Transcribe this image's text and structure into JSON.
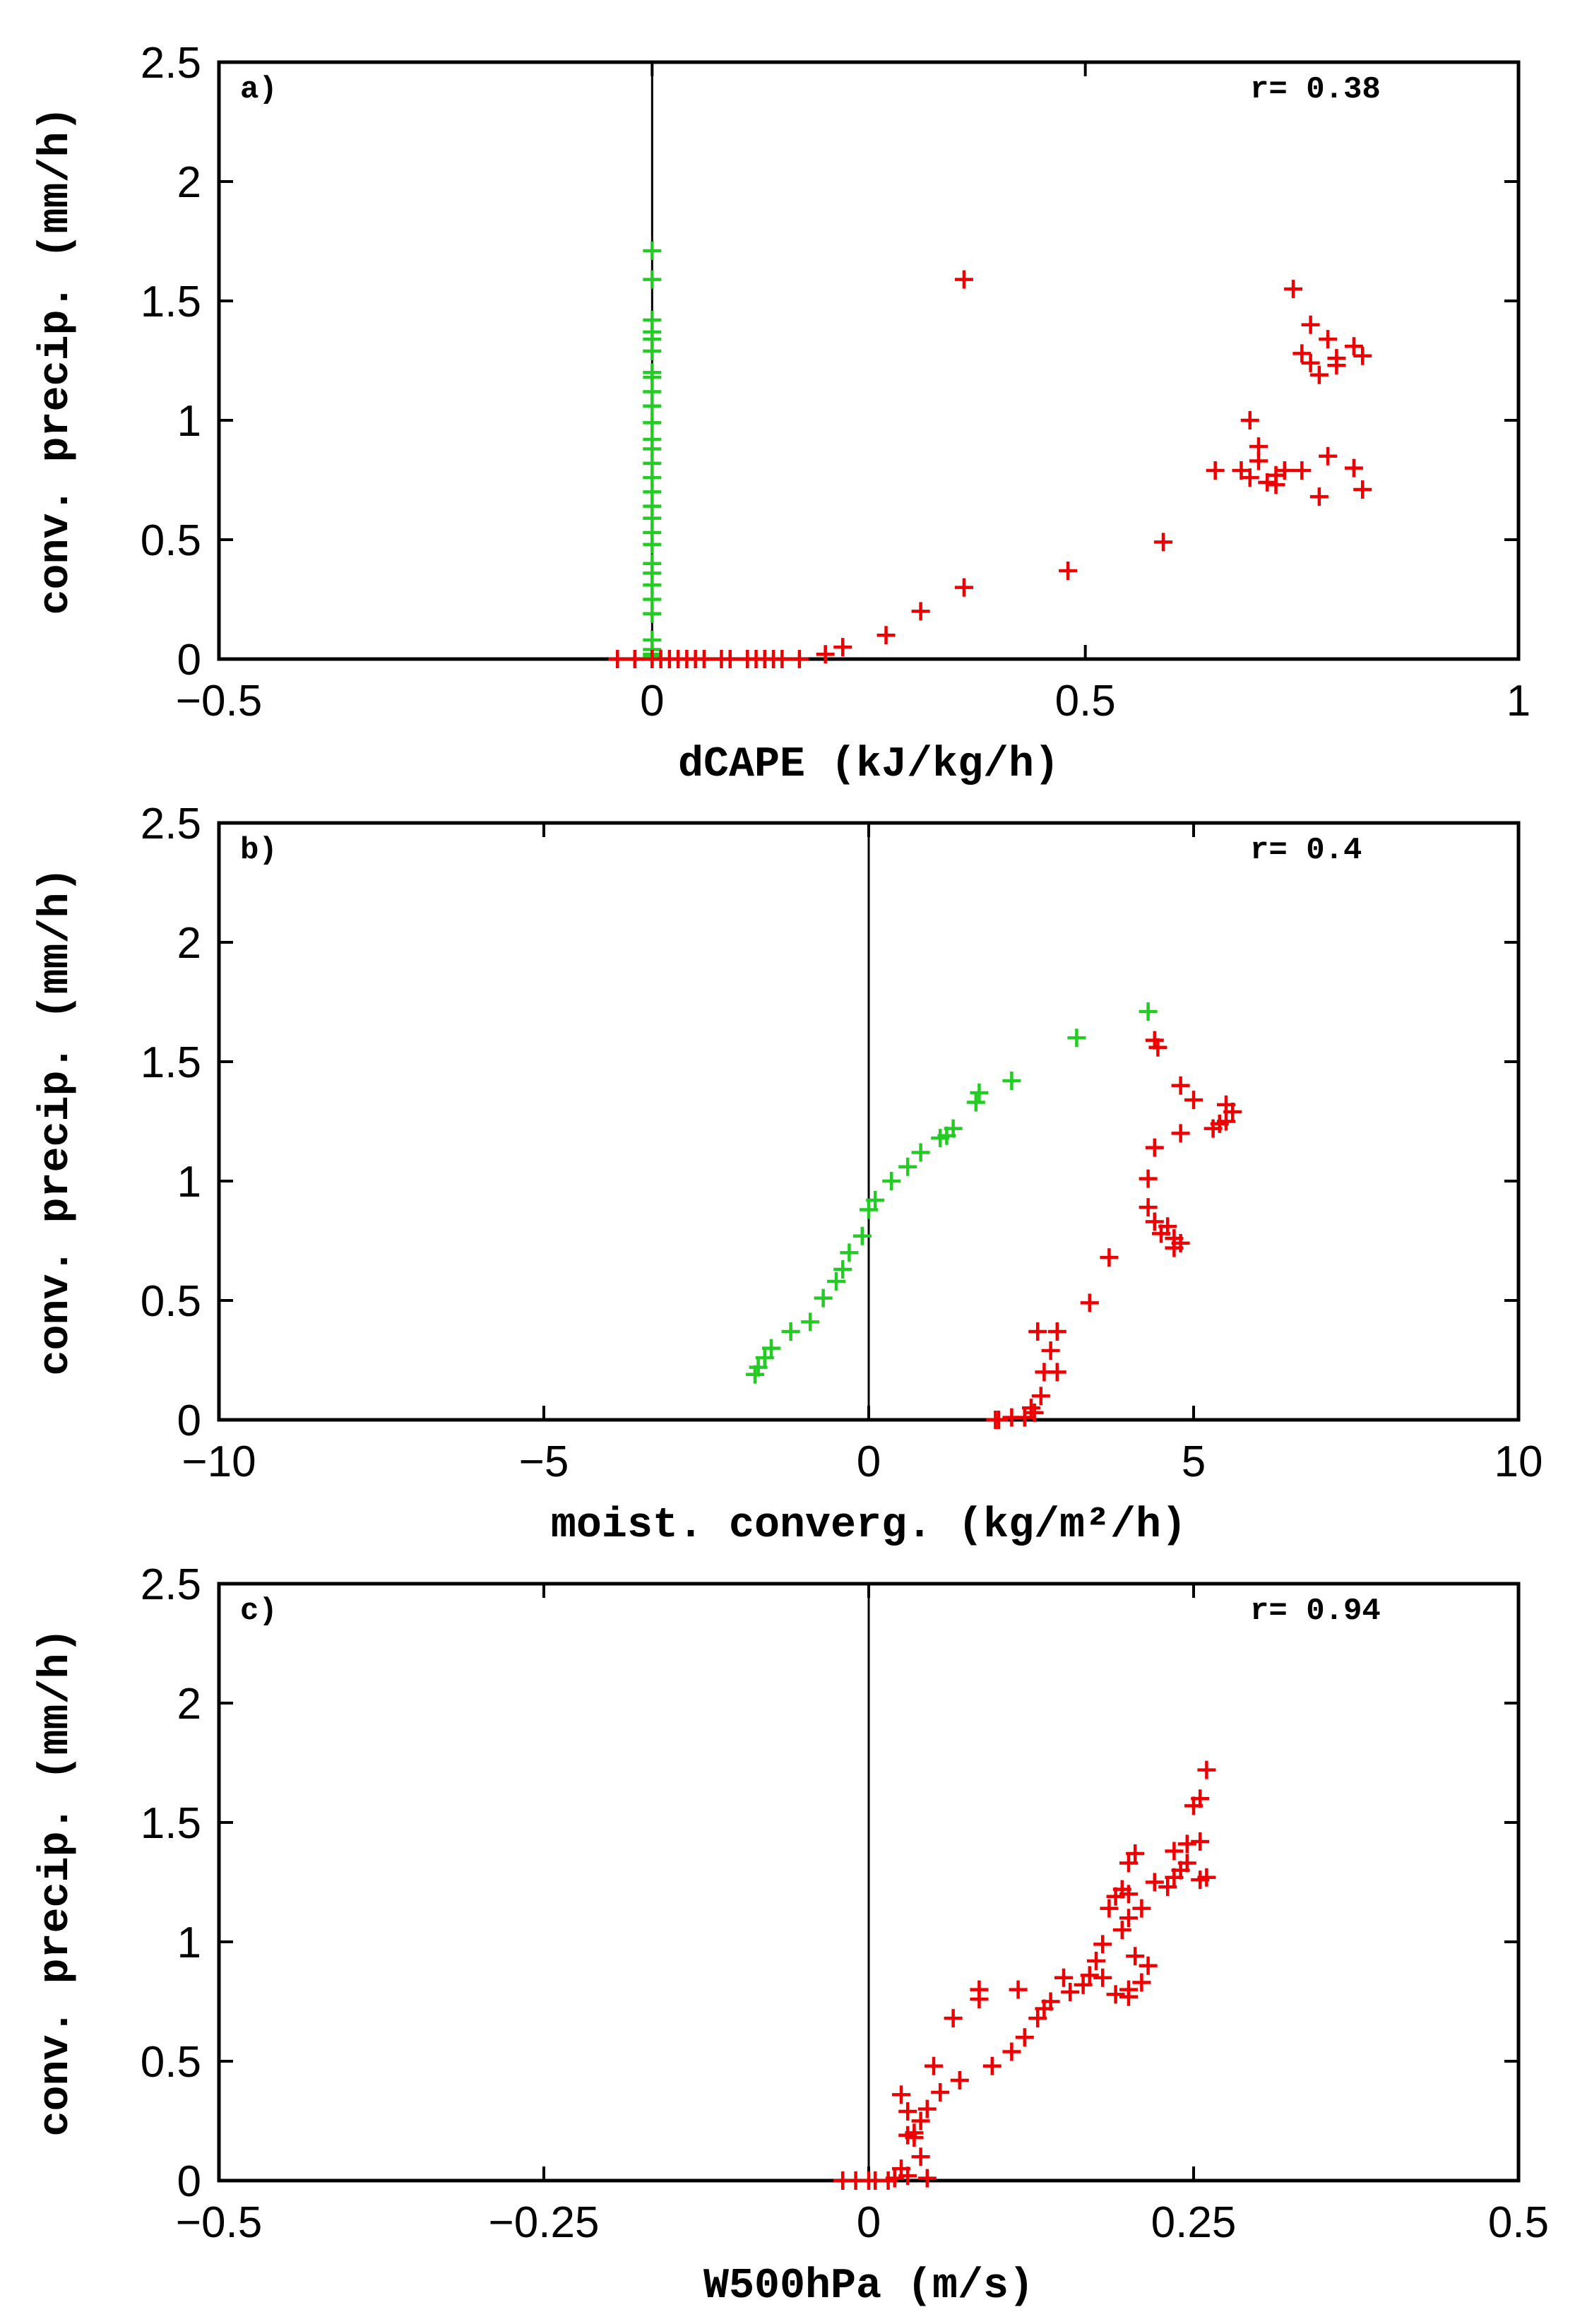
{
  "chart_data": [
    {
      "type": "scatter",
      "panel_label": "a)",
      "annotation": "r= 0.38",
      "xlabel": "dCAPE (kJ/kg/h)",
      "ylabel": "conv. precip. (mm/h)",
      "xlim": [
        -0.5,
        1
      ],
      "ylim": [
        0,
        2.5
      ],
      "xticks": [
        -0.5,
        0,
        0.5,
        1
      ],
      "xtick_labels": [
        "−0.5",
        "0",
        "0.5",
        "1"
      ],
      "yticks": [
        0,
        0.5,
        1,
        1.5,
        2,
        2.5
      ],
      "ytick_labels": [
        "0",
        "0.5",
        "1",
        "1.5",
        "2",
        "2.5"
      ],
      "zero_line": 0,
      "marker": "+",
      "series": [
        {
          "name": "green",
          "color": "#22cc22",
          "x": [
            0,
            0,
            0,
            0,
            0,
            0,
            0,
            0,
            0,
            0,
            0,
            0,
            0,
            0,
            0,
            0,
            0,
            0,
            0,
            0,
            0,
            0,
            0,
            0,
            0,
            0,
            0,
            0,
            0,
            0
          ],
          "y": [
            1.71,
            1.59,
            1.42,
            1.37,
            1.34,
            1.29,
            1.2,
            1.18,
            1.12,
            1.06,
            0.99,
            0.92,
            0.88,
            0.82,
            0.76,
            0.7,
            0.64,
            0.59,
            0.53,
            0.48,
            0.4,
            0.36,
            0.31,
            0.25,
            0.19,
            0.08,
            0.04,
            0.02,
            0.01,
            0
          ]
        },
        {
          "name": "red",
          "color": "#ee0000",
          "x": [
            0.36,
            0.74,
            0.76,
            0.78,
            0.81,
            0.82,
            0.79,
            0.76,
            0.77,
            0.69,
            0.7,
            0.65,
            0.68,
            0.7,
            0.72,
            0.73,
            0.71,
            0.69,
            0.75,
            0.78,
            0.81,
            0.77,
            0.82,
            0.59,
            0.48,
            0.36,
            0.31,
            0.27,
            0.22,
            0.2,
            0.15,
            0.13,
            0.11,
            0.08,
            0.04,
            0.03,
            0.02,
            0.01,
            0.0,
            -0.02,
            -0.04,
            0.05,
            0.06,
            0.09,
            0.12,
            0.14,
            0.17,
            0.79,
            0.75,
            0.72
          ],
          "y": [
            1.59,
            1.55,
            1.4,
            1.34,
            1.31,
            1.27,
            1.26,
            1.24,
            1.19,
            1.0,
            0.89,
            0.79,
            0.79,
            0.83,
            0.77,
            0.79,
            0.74,
            0.76,
            0.79,
            0.85,
            0.8,
            0.68,
            0.71,
            0.49,
            0.37,
            0.3,
            0.2,
            0.1,
            0.05,
            0.02,
            0,
            0,
            0,
            0,
            0,
            0,
            0,
            0,
            0,
            0,
            0,
            0,
            0,
            0,
            0,
            0,
            0,
            1.23,
            1.28,
            0.73
          ]
        }
      ]
    },
    {
      "type": "scatter",
      "panel_label": "b)",
      "annotation": "r= 0.4",
      "xlabel": "moist. converg. (kg/m²/h)",
      "ylabel": "conv. precip. (mm/h)",
      "xlim": [
        -10,
        10
      ],
      "ylim": [
        0,
        2.5
      ],
      "xticks": [
        -10,
        -5,
        0,
        5,
        10
      ],
      "xtick_labels": [
        "−10",
        "−5",
        "0",
        "5",
        "10"
      ],
      "yticks": [
        0,
        0.5,
        1,
        1.5,
        2,
        2.5
      ],
      "ytick_labels": [
        "0",
        "0.5",
        "1",
        "1.5",
        "2",
        "2.5"
      ],
      "zero_line": 0,
      "marker": "+",
      "series": [
        {
          "name": "green",
          "color": "#22cc22",
          "x": [
            4.3,
            3.2,
            2.2,
            1.7,
            1.65,
            1.3,
            1.2,
            1.1,
            0.8,
            0.6,
            0.35,
            0.1,
            0.0,
            -0.1,
            -0.3,
            -0.4,
            -0.5,
            -0.7,
            -0.9,
            -1.2,
            -1.5,
            -1.6,
            -1.7,
            -1.75
          ],
          "y": [
            1.71,
            1.6,
            1.42,
            1.37,
            1.33,
            1.22,
            1.19,
            1.18,
            1.12,
            1.06,
            1.0,
            0.92,
            0.88,
            0.77,
            0.7,
            0.63,
            0.58,
            0.51,
            0.41,
            0.37,
            0.3,
            0.26,
            0.22,
            0.19
          ],
          "_": "green points trending upward-right"
        },
        {
          "name": "red",
          "color": "#ee0000",
          "x": [
            4.4,
            4.45,
            4.8,
            5.0,
            5.5,
            5.6,
            5.5,
            5.4,
            5.3,
            4.8,
            4.4,
            4.3,
            4.3,
            4.4,
            4.5,
            4.7,
            4.8,
            4.6,
            4.7,
            3.7,
            3.4,
            2.9,
            2.6,
            2.8,
            2.9,
            2.65,
            2.55,
            2.4,
            2.2,
            2.0,
            1.95,
            2.5,
            2.7
          ],
          "y": [
            1.59,
            1.56,
            1.4,
            1.34,
            1.32,
            1.29,
            1.25,
            1.24,
            1.22,
            1.2,
            1.14,
            1.01,
            0.89,
            0.83,
            0.78,
            0.76,
            0.74,
            0.81,
            0.72,
            0.68,
            0.49,
            0.37,
            0.37,
            0.29,
            0.2,
            0.1,
            0.03,
            0.01,
            0.01,
            0,
            0,
            0.05,
            0.2
          ]
        }
      ]
    },
    {
      "type": "scatter",
      "panel_label": "c)",
      "annotation": "r= 0.94",
      "xlabel": "W500hPa (m/s)",
      "ylabel": "conv. precip. (mm/h)",
      "xlim": [
        -0.5,
        0.5
      ],
      "ylim": [
        0,
        2.5
      ],
      "xticks": [
        -0.5,
        -0.25,
        0,
        0.25,
        0.5
      ],
      "xtick_labels": [
        "−0.5",
        "−0.25",
        "0",
        "0.25",
        "0.5"
      ],
      "yticks": [
        0,
        0.5,
        1,
        1.5,
        2,
        2.5
      ],
      "ytick_labels": [
        "0",
        "0.5",
        "1",
        "1.5",
        "2",
        "2.5"
      ],
      "zero_line": 0,
      "marker": "+",
      "series": [
        {
          "name": "red",
          "color": "#ee0000",
          "x": [
            0.26,
            0.255,
            0.25,
            0.255,
            0.245,
            0.235,
            0.24,
            0.245,
            0.26,
            0.255,
            0.23,
            0.235,
            0.22,
            0.205,
            0.2,
            0.195,
            0.2,
            0.19,
            0.185,
            0.21,
            0.2,
            0.195,
            0.18,
            0.175,
            0.17,
            0.165,
            0.15,
            0.155,
            0.14,
            0.135,
            0.13,
            0.12,
            0.11,
            0.095,
            0.085,
            0.085,
            0.065,
            0.07,
            0.055,
            0.045,
            0.04,
            0.035,
            0.03,
            0.025,
            0.025,
            0.03,
            0.02,
            0.015,
            0.005,
            0.0,
            -0.01,
            -0.02,
            0.03,
            0.035,
            0.04,
            0.05,
            0.045,
            0.115,
            0.19,
            0.2,
            0.21,
            0.2,
            0.18,
            0.215,
            0.205
          ],
          "y": [
            1.72,
            1.6,
            1.57,
            1.42,
            1.41,
            1.38,
            1.3,
            1.33,
            1.27,
            1.26,
            1.23,
            1.27,
            1.25,
            1.37,
            1.33,
            1.22,
            1.2,
            1.19,
            1.14,
            1.14,
            1.1,
            1.05,
            0.99,
            0.92,
            0.86,
            0.82,
            0.85,
            0.79,
            0.75,
            0.72,
            0.68,
            0.6,
            0.54,
            0.48,
            0.76,
            0.8,
            0.68,
            0.42,
            0.37,
            0.3,
            0.25,
            0.18,
            0.29,
            0.36,
            0.05,
            0.02,
            0.01,
            0,
            0,
            0,
            0,
            0,
            0.19,
            0.2,
            0.1,
            0.48,
            0.01,
            0.8,
            0.78,
            0.8,
            0.83,
            0.77,
            0.85,
            0.9,
            0.94
          ]
        }
      ]
    }
  ]
}
